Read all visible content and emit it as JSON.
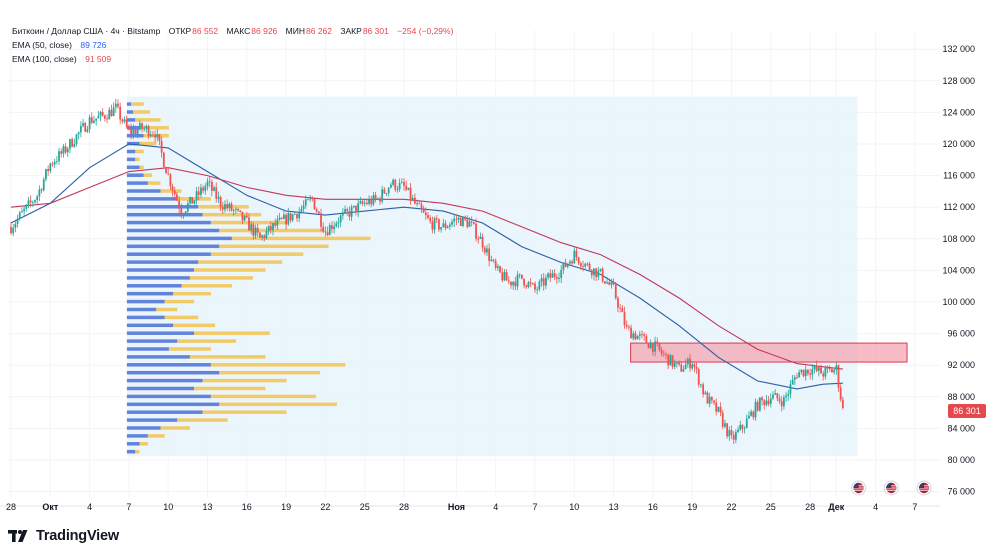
{
  "legend": {
    "symbol": "Биткоин / Доллар США · 4ч · Bitstamp",
    "open_label": "ОТКР",
    "open": "86 552",
    "high_label": "МАКС",
    "high": "86 926",
    "low_label": "МИН",
    "low": "86 262",
    "close_label": "ЗАКР",
    "close": "86 301",
    "change": "−254 (−0,29%)",
    "ema50_label": "EMA (50, close)",
    "ema50": "89 726",
    "ema100_label": "EMA (100, close)",
    "ema100": "91 509"
  },
  "last_price_tag": "86 301",
  "brand": "TradingView",
  "colors": {
    "up": "#26a69a",
    "down": "#ef5350",
    "ema50": "#2a5ea8",
    "ema100": "#c2375a",
    "vp_buy": "#4a6fd6",
    "vp_sell": "#f3c24c",
    "range_fill": "#e8f3fc",
    "zone_fill": "#f4a6b2",
    "zone_border": "#e0364f"
  },
  "chart_data": {
    "type": "candlestick",
    "title": "Биткоин / Доллар США · 4ч · Bitstamp",
    "ylim": [
      74000,
      134000
    ],
    "y_ticks": [
      76000,
      80000,
      84000,
      88000,
      92000,
      96000,
      100000,
      104000,
      108000,
      112000,
      116000,
      120000,
      124000,
      128000,
      132000
    ],
    "y_tick_labels": [
      "76 000",
      "80 000",
      "84 000",
      "88 000",
      "92 000",
      "96 000",
      "100 000",
      "104 000",
      "108 000",
      "112 000",
      "116 000",
      "120 000",
      "124 000",
      "128 000",
      "132 000"
    ],
    "x_ticks": [
      {
        "day": 0,
        "label": "28"
      },
      {
        "day": 3,
        "label": "Окт"
      },
      {
        "day": 6,
        "label": "4"
      },
      {
        "day": 9,
        "label": "7"
      },
      {
        "day": 12,
        "label": "10"
      },
      {
        "day": 15,
        "label": "13"
      },
      {
        "day": 18,
        "label": "16"
      },
      {
        "day": 21,
        "label": "19"
      },
      {
        "day": 24,
        "label": "22"
      },
      {
        "day": 27,
        "label": "25"
      },
      {
        "day": 30,
        "label": "28"
      },
      {
        "day": 34,
        "label": "Ноя"
      },
      {
        "day": 37,
        "label": "4"
      },
      {
        "day": 40,
        "label": "7"
      },
      {
        "day": 43,
        "label": "10"
      },
      {
        "day": 46,
        "label": "13"
      },
      {
        "day": 49,
        "label": "16"
      },
      {
        "day": 52,
        "label": "19"
      },
      {
        "day": 55,
        "label": "22"
      },
      {
        "day": 58,
        "label": "25"
      },
      {
        "day": 61,
        "label": "28"
      },
      {
        "day": 63,
        "label": "Дек"
      },
      {
        "day": 66,
        "label": "4"
      },
      {
        "day": 69,
        "label": "7"
      }
    ],
    "price_path": [
      [
        0,
        109500
      ],
      [
        1,
        111500
      ],
      [
        2,
        113500
      ],
      [
        3,
        117500
      ],
      [
        4,
        119000
      ],
      [
        5,
        121000
      ],
      [
        6,
        123000
      ],
      [
        7,
        123500
      ],
      [
        8,
        124500
      ],
      [
        9,
        121500
      ],
      [
        10,
        122000
      ],
      [
        11,
        121500
      ],
      [
        12,
        116000
      ],
      [
        13,
        111500
      ],
      [
        14,
        113000
      ],
      [
        15,
        115000
      ],
      [
        16,
        112500
      ],
      [
        17,
        111500
      ],
      [
        18,
        110000
      ],
      [
        19,
        108000
      ],
      [
        20,
        109500
      ],
      [
        21,
        110500
      ],
      [
        22,
        111500
      ],
      [
        23,
        113000
      ],
      [
        24,
        109000
      ],
      [
        25,
        110500
      ],
      [
        26,
        111500
      ],
      [
        27,
        112500
      ],
      [
        28,
        113000
      ],
      [
        29,
        115000
      ],
      [
        30,
        114500
      ],
      [
        31,
        112000
      ],
      [
        32,
        110000
      ],
      [
        33,
        109500
      ],
      [
        34,
        110500
      ],
      [
        35,
        110000
      ],
      [
        36,
        107500
      ],
      [
        37,
        104000
      ],
      [
        38,
        102500
      ],
      [
        39,
        103000
      ],
      [
        40,
        101500
      ],
      [
        41,
        103000
      ],
      [
        42,
        104000
      ],
      [
        43,
        106000
      ],
      [
        44,
        104500
      ],
      [
        45,
        103500
      ],
      [
        46,
        101500
      ],
      [
        47,
        96500
      ],
      [
        48,
        95500
      ],
      [
        49,
        94500
      ],
      [
        50,
        93000
      ],
      [
        51,
        91500
      ],
      [
        52,
        92500
      ],
      [
        53,
        88000
      ],
      [
        54,
        86000
      ],
      [
        55,
        82500
      ],
      [
        56,
        84500
      ],
      [
        57,
        87000
      ],
      [
        58,
        88000
      ],
      [
        59,
        87500
      ],
      [
        60,
        91000
      ],
      [
        61,
        91500
      ],
      [
        62,
        91000
      ],
      [
        63,
        91500
      ],
      [
        63.5,
        86301
      ]
    ],
    "ema50": [
      [
        0,
        110000
      ],
      [
        3,
        112500
      ],
      [
        6,
        117000
      ],
      [
        9,
        120000
      ],
      [
        12,
        119500
      ],
      [
        15,
        116500
      ],
      [
        18,
        113500
      ],
      [
        21,
        111500
      ],
      [
        24,
        111000
      ],
      [
        27,
        111500
      ],
      [
        30,
        112000
      ],
      [
        33,
        111500
      ],
      [
        36,
        110000
      ],
      [
        39,
        107000
      ],
      [
        42,
        105000
      ],
      [
        45,
        103500
      ],
      [
        48,
        100500
      ],
      [
        51,
        97000
      ],
      [
        54,
        93000
      ],
      [
        57,
        90000
      ],
      [
        60,
        89000
      ],
      [
        62,
        89600
      ],
      [
        63.5,
        89726
      ]
    ],
    "ema100": [
      [
        0,
        112000
      ],
      [
        3,
        112500
      ],
      [
        6,
        114500
      ],
      [
        9,
        116500
      ],
      [
        12,
        117000
      ],
      [
        15,
        116000
      ],
      [
        18,
        114500
      ],
      [
        21,
        113500
      ],
      [
        24,
        113000
      ],
      [
        27,
        113000
      ],
      [
        30,
        113000
      ],
      [
        33,
        112500
      ],
      [
        36,
        111500
      ],
      [
        39,
        109500
      ],
      [
        42,
        107500
      ],
      [
        45,
        106000
      ],
      [
        48,
        103500
      ],
      [
        51,
        100500
      ],
      [
        54,
        97000
      ],
      [
        57,
        94000
      ],
      [
        60,
        92200
      ],
      [
        62,
        91800
      ],
      [
        63.5,
        91509
      ]
    ],
    "ema50_label": "EMA (50, close)",
    "ema100_label": "EMA (100, close)",
    "volume_profile": {
      "price_range": [
        80500,
        126000
      ],
      "start_day": 9,
      "end_day": 64,
      "rows": [
        {
          "price": 125000,
          "buy": 0.01,
          "sell": 0.03
        },
        {
          "price": 124000,
          "buy": 0.015,
          "sell": 0.04
        },
        {
          "price": 123000,
          "buy": 0.02,
          "sell": 0.06
        },
        {
          "price": 122000,
          "buy": 0.03,
          "sell": 0.07
        },
        {
          "price": 121000,
          "buy": 0.04,
          "sell": 0.06
        },
        {
          "price": 120000,
          "buy": 0.03,
          "sell": 0.04
        },
        {
          "price": 119000,
          "buy": 0.02,
          "sell": 0.02
        },
        {
          "price": 118000,
          "buy": 0.02,
          "sell": 0.01
        },
        {
          "price": 117000,
          "buy": 0.03,
          "sell": 0.01
        },
        {
          "price": 116000,
          "buy": 0.04,
          "sell": 0.02
        },
        {
          "price": 115000,
          "buy": 0.05,
          "sell": 0.03
        },
        {
          "price": 114000,
          "buy": 0.08,
          "sell": 0.05
        },
        {
          "price": 113000,
          "buy": 0.12,
          "sell": 0.08
        },
        {
          "price": 112000,
          "buy": 0.17,
          "sell": 0.12
        },
        {
          "price": 111000,
          "buy": 0.18,
          "sell": 0.14
        },
        {
          "price": 110000,
          "buy": 0.2,
          "sell": 0.18
        },
        {
          "price": 109000,
          "buy": 0.22,
          "sell": 0.25
        },
        {
          "price": 108000,
          "buy": 0.25,
          "sell": 0.33
        },
        {
          "price": 107000,
          "buy": 0.22,
          "sell": 0.26
        },
        {
          "price": 106000,
          "buy": 0.2,
          "sell": 0.22
        },
        {
          "price": 105000,
          "buy": 0.17,
          "sell": 0.2
        },
        {
          "price": 104000,
          "buy": 0.16,
          "sell": 0.17
        },
        {
          "price": 103000,
          "buy": 0.15,
          "sell": 0.15
        },
        {
          "price": 102000,
          "buy": 0.13,
          "sell": 0.12
        },
        {
          "price": 101000,
          "buy": 0.11,
          "sell": 0.09
        },
        {
          "price": 100000,
          "buy": 0.09,
          "sell": 0.07
        },
        {
          "price": 99000,
          "buy": 0.07,
          "sell": 0.05
        },
        {
          "price": 98000,
          "buy": 0.09,
          "sell": 0.08
        },
        {
          "price": 97000,
          "buy": 0.11,
          "sell": 0.1
        },
        {
          "price": 96000,
          "buy": 0.16,
          "sell": 0.18
        },
        {
          "price": 95000,
          "buy": 0.12,
          "sell": 0.14
        },
        {
          "price": 94000,
          "buy": 0.1,
          "sell": 0.1
        },
        {
          "price": 93000,
          "buy": 0.15,
          "sell": 0.18
        },
        {
          "price": 92000,
          "buy": 0.2,
          "sell": 0.32
        },
        {
          "price": 91000,
          "buy": 0.22,
          "sell": 0.24
        },
        {
          "price": 90000,
          "buy": 0.18,
          "sell": 0.2
        },
        {
          "price": 89000,
          "buy": 0.16,
          "sell": 0.17
        },
        {
          "price": 88000,
          "buy": 0.2,
          "sell": 0.25
        },
        {
          "price": 87000,
          "buy": 0.22,
          "sell": 0.28
        },
        {
          "price": 86000,
          "buy": 0.18,
          "sell": 0.2
        },
        {
          "price": 85000,
          "buy": 0.12,
          "sell": 0.12
        },
        {
          "price": 84000,
          "buy": 0.08,
          "sell": 0.07
        },
        {
          "price": 83000,
          "buy": 0.05,
          "sell": 0.04
        },
        {
          "price": 82000,
          "buy": 0.03,
          "sell": 0.02
        },
        {
          "price": 81000,
          "buy": 0.02,
          "sell": 0.01
        }
      ]
    },
    "resistance_zone": {
      "from_day": 47.3,
      "to_day": 68.4,
      "low": 92400,
      "high": 94800
    },
    "event_icons": [
      {
        "day": 64.7
      },
      {
        "day": 67.2
      },
      {
        "day": 69.7
      }
    ]
  }
}
